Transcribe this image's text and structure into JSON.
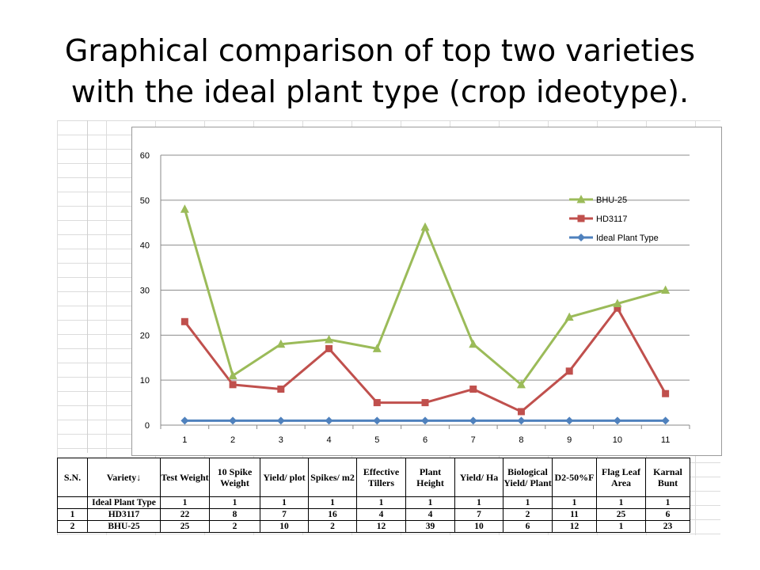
{
  "title_line1": "Graphical comparison of top two varieties",
  "title_line2": "with the ideal plant type (crop ideotype).",
  "chart_data": {
    "type": "line",
    "categories": [
      "1",
      "2",
      "3",
      "4",
      "5",
      "6",
      "7",
      "8",
      "9",
      "10",
      "11"
    ],
    "ylim": [
      0,
      60
    ],
    "yticks": [
      "0",
      "10",
      "20",
      "30",
      "40",
      "50",
      "60"
    ],
    "series": [
      {
        "name": "BHU-25",
        "color": "#9BBB59",
        "marker": "triangle",
        "values": [
          48,
          11,
          18,
          19,
          17,
          44,
          18,
          9,
          24,
          27,
          30
        ]
      },
      {
        "name": "HD3117",
        "color": "#C0504D",
        "marker": "square",
        "values": [
          23,
          9,
          8,
          17,
          5,
          5,
          8,
          3,
          12,
          26,
          7
        ]
      },
      {
        "name": "Ideal Plant Type",
        "color": "#4F81BD",
        "marker": "diamond",
        "values": [
          1,
          1,
          1,
          1,
          1,
          1,
          1,
          1,
          1,
          1,
          1
        ]
      }
    ],
    "grid": true,
    "legend_position": "right"
  },
  "table": {
    "headers": [
      "S.N.",
      "Variety↓",
      "Test Weight",
      "10 Spike Weight",
      "Yield/ plot",
      "Spikes/ m2",
      "Effective Tillers",
      "Plant Height",
      "Yield/ Ha",
      "Biological Yield/ Plant",
      "D2-50%F",
      "Flag Leaf Area",
      "Karnal Bunt"
    ],
    "rows": [
      [
        "",
        "Ideal Plant Type",
        "1",
        "1",
        "1",
        "1",
        "1",
        "1",
        "1",
        "1",
        "1",
        "1",
        "1"
      ],
      [
        "1",
        "HD3117",
        "22",
        "8",
        "7",
        "16",
        "4",
        "4",
        "7",
        "2",
        "11",
        "25",
        "6"
      ],
      [
        "2",
        "BHU-25",
        "25",
        "2",
        "10",
        "2",
        "12",
        "39",
        "10",
        "6",
        "12",
        "1",
        "23"
      ]
    ]
  }
}
